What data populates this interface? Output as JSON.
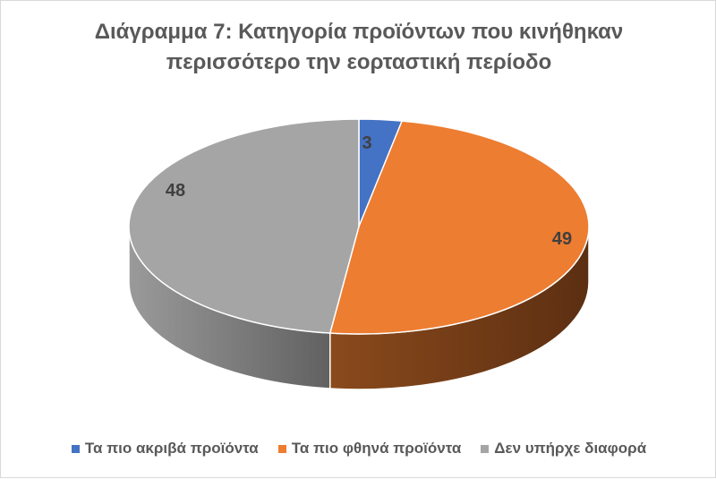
{
  "chart_data": {
    "type": "pie",
    "style": "3d",
    "title": "Διάγραμμα 7: Κατηγορία προϊόντων που κινήθηκαν περισσότερο την εορταστική περίοδο",
    "title_lines": [
      "Διάγραμμα 7: Κατηγορία προϊόντων που κινήθηκαν",
      "περισσότερο την εορταστική περίοδο"
    ],
    "categories": [
      "Τα πιο ακριβά προϊόντα",
      "Τα πιο φθηνά προϊόντα",
      "Δεν υπήρχε διαφορά"
    ],
    "values": [
      3,
      49,
      48
    ],
    "data_labels": [
      "3",
      "49",
      "48"
    ],
    "colors": [
      "#4472c4",
      "#ed7d31",
      "#a5a5a5"
    ],
    "legend_position": "bottom"
  },
  "legend": [
    {
      "label": "Τα πιο ακριβά προϊόντα",
      "color": "#4472c4"
    },
    {
      "label": "Τα πιο φθηνά προϊόντα",
      "color": "#ed7d31"
    },
    {
      "label": "Δεν υπήρχε διαφορά",
      "color": "#a5a5a5"
    }
  ]
}
